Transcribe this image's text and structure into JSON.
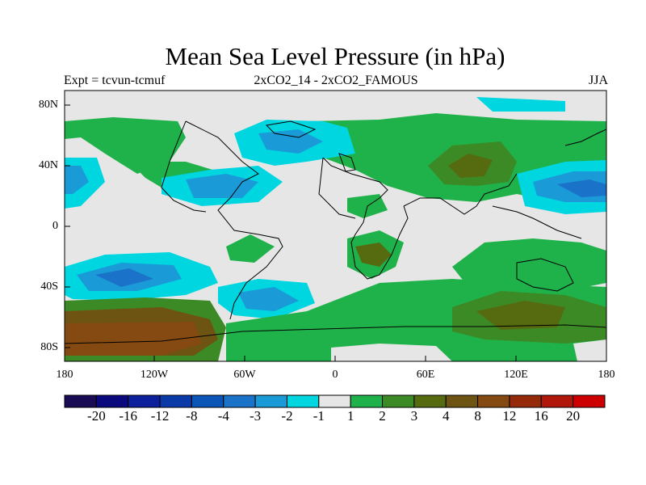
{
  "title": "Mean Sea Level Pressure (in hPa)",
  "subtitle_left": "Expt = tcvun-tcmuf",
  "subtitle_center": "2xCO2_14 - 2xCO2_FAMOUS",
  "subtitle_right": "JJA",
  "lat_ticks": [
    "80N",
    "40N",
    "0",
    "40S",
    "80S"
  ],
  "lon_ticks": [
    "180",
    "120W",
    "60W",
    "0",
    "60E",
    "120E",
    "180"
  ],
  "colorbar": {
    "colors": [
      "#1a0b55",
      "#0a0a7e",
      "#0d1f9a",
      "#0a3aa8",
      "#0a55b5",
      "#1a72c9",
      "#1a9ad6",
      "#00d6e0",
      "#e6e6e6",
      "#20b24a",
      "#3c8a26",
      "#566a10",
      "#6e5412",
      "#844a12",
      "#942a0a",
      "#b0160a",
      "#cc0000"
    ],
    "labels": [
      "-20",
      "-16",
      "-12",
      "-8",
      "-4",
      "-3",
      "-2",
      "-1",
      "1",
      "2",
      "3",
      "4",
      "8",
      "12",
      "16",
      "20"
    ]
  }
}
